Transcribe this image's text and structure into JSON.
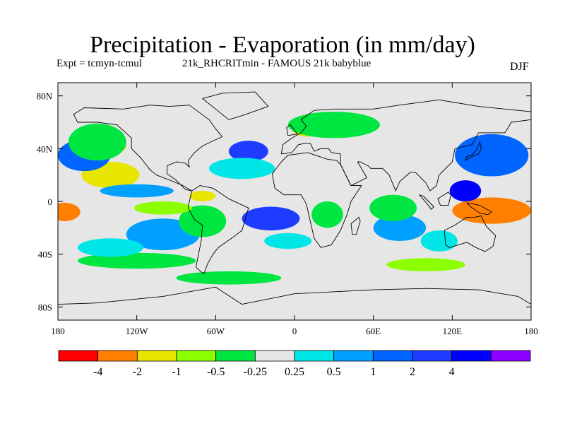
{
  "title": "Precipitation - Evaporation (in mm/day)",
  "subtitle_left": "Expt = tcmyn-tcmul",
  "subtitle_center": "21k_RHCRITmin - FAMOUS 21k babyblue",
  "season": "DJF",
  "map": {
    "projection": "cylindrical equidistant",
    "lon_range": [
      -180,
      180
    ],
    "lat_range": [
      -90,
      90
    ],
    "y_ticks": [
      {
        "lat": 80,
        "label": "80N"
      },
      {
        "lat": 40,
        "label": "40N"
      },
      {
        "lat": 0,
        "label": "0"
      },
      {
        "lat": -40,
        "label": "40S"
      },
      {
        "lat": -80,
        "label": "80S"
      }
    ],
    "x_ticks": [
      {
        "lon": -180,
        "label": "180"
      },
      {
        "lon": -120,
        "label": "120W"
      },
      {
        "lon": -60,
        "label": "60W"
      },
      {
        "lon": 0,
        "label": "0"
      },
      {
        "lon": 60,
        "label": "60E"
      },
      {
        "lon": 120,
        "label": "120E"
      },
      {
        "lon": 180,
        "label": "180"
      }
    ],
    "neutral_color": "#e6e6e6",
    "anomaly_patches": [
      {
        "name": "wpac-center",
        "lon": 148,
        "lat": -8,
        "rlon": 16,
        "rlat": 7,
        "color": "#ff0000"
      },
      {
        "name": "wpac-orange",
        "lon": 150,
        "lat": -7,
        "rlon": 30,
        "rlat": 10,
        "color": "#ff8000"
      },
      {
        "name": "epac-orange",
        "lon": -175,
        "lat": -8,
        "rlon": 12,
        "rlat": 7,
        "color": "#ff8000"
      },
      {
        "name": "nepac-yellow",
        "lon": -140,
        "lat": 20,
        "rlon": 22,
        "rlat": 10,
        "color": "#e6e600"
      },
      {
        "name": "namer-yellow",
        "lon": -140,
        "lat": 42,
        "rlon": 12,
        "rlat": 6,
        "color": "#e6e600"
      },
      {
        "name": "eu-yellow",
        "lon": 10,
        "lat": 55,
        "rlon": 12,
        "rlat": 6,
        "color": "#e6e600"
      },
      {
        "name": "samer-yellow",
        "lon": -70,
        "lat": 4,
        "rlon": 10,
        "rlat": 4,
        "color": "#e6e600"
      },
      {
        "name": "npac-blue",
        "lon": 150,
        "lat": 35,
        "rlon": 28,
        "rlat": 16,
        "color": "#0064ff"
      },
      {
        "name": "wpac-navy",
        "lon": 130,
        "lat": 8,
        "rlon": 12,
        "rlat": 8,
        "color": "#0000ff"
      },
      {
        "name": "natl-navy",
        "lon": -35,
        "lat": 38,
        "rlon": 15,
        "rlat": 8,
        "color": "#1e3cff"
      },
      {
        "name": "satl-navy",
        "lon": -18,
        "lat": -13,
        "rlon": 22,
        "rlat": 9,
        "color": "#1e3cff"
      },
      {
        "name": "spac-blue",
        "lon": -100,
        "lat": -25,
        "rlon": 28,
        "rlat": 12,
        "color": "#00a0ff"
      },
      {
        "name": "npac-east-blue",
        "lon": -160,
        "lat": 35,
        "rlon": 20,
        "rlat": 12,
        "color": "#0064ff"
      },
      {
        "name": "trop-pac-blue",
        "lon": -120,
        "lat": 8,
        "rlon": 28,
        "rlat": 5,
        "color": "#00a0ff"
      },
      {
        "name": "io-blue",
        "lon": 80,
        "lat": -20,
        "rlon": 20,
        "rlat": 10,
        "color": "#00a0ff"
      },
      {
        "name": "sh-green-band",
        "lon": -120,
        "lat": -45,
        "rlon": 45,
        "rlat": 6,
        "color": "#00e640"
      },
      {
        "name": "npac-green",
        "lon": -150,
        "lat": 45,
        "rlon": 22,
        "rlat": 14,
        "color": "#00e640"
      },
      {
        "name": "eu-green",
        "lon": 30,
        "lat": 58,
        "rlon": 35,
        "rlat": 10,
        "color": "#00e640"
      },
      {
        "name": "io-green",
        "lon": 75,
        "lat": -5,
        "rlon": 18,
        "rlat": 10,
        "color": "#00e640"
      },
      {
        "name": "samer-green",
        "lon": -70,
        "lat": -15,
        "rlon": 18,
        "rlat": 12,
        "color": "#00e640"
      },
      {
        "name": "africa-green",
        "lon": 25,
        "lat": -10,
        "rlon": 12,
        "rlat": 10,
        "color": "#00e640"
      },
      {
        "name": "so-green",
        "lon": -50,
        "lat": -58,
        "rlon": 40,
        "rlat": 5,
        "color": "#00e640"
      },
      {
        "name": "spac-cyan",
        "lon": -140,
        "lat": -35,
        "rlon": 25,
        "rlat": 7,
        "color": "#00e6e6"
      },
      {
        "name": "natl-cyan",
        "lon": -40,
        "lat": 25,
        "rlon": 25,
        "rlat": 8,
        "color": "#00e6e6"
      },
      {
        "name": "satl-cyan",
        "lon": -5,
        "lat": -30,
        "rlon": 18,
        "rlat": 6,
        "color": "#00e6e6"
      },
      {
        "name": "io-cyan",
        "lon": 110,
        "lat": -30,
        "rlon": 14,
        "rlat": 8,
        "color": "#00e6e6"
      },
      {
        "name": "amer-lime",
        "lon": -100,
        "lat": -5,
        "rlon": 22,
        "rlat": 5,
        "color": "#8cff00"
      },
      {
        "name": "so-lime",
        "lon": 100,
        "lat": -48,
        "rlon": 30,
        "rlat": 5,
        "color": "#8cff00"
      }
    ],
    "land_masses": [
      {
        "name": "north-america",
        "points": [
          [
            -168,
            66
          ],
          [
            -160,
            71
          ],
          [
            -130,
            70
          ],
          [
            -110,
            73
          ],
          [
            -95,
            72
          ],
          [
            -80,
            73
          ],
          [
            -65,
            62
          ],
          [
            -60,
            55
          ],
          [
            -55,
            49
          ],
          [
            -66,
            44
          ],
          [
            -70,
            42
          ],
          [
            -76,
            37
          ],
          [
            -81,
            31
          ],
          [
            -80,
            26
          ],
          [
            -83,
            29
          ],
          [
            -90,
            30
          ],
          [
            -97,
            27
          ],
          [
            -97,
            21
          ],
          [
            -90,
            16
          ],
          [
            -83,
            9
          ],
          [
            -78,
            8
          ],
          [
            -85,
            12
          ],
          [
            -92,
            15
          ],
          [
            -105,
            20
          ],
          [
            -110,
            24
          ],
          [
            -117,
            33
          ],
          [
            -124,
            40
          ],
          [
            -124,
            48
          ],
          [
            -135,
            58
          ],
          [
            -150,
            60
          ],
          [
            -165,
            60
          ]
        ]
      },
      {
        "name": "south-america",
        "points": [
          [
            -78,
            8
          ],
          [
            -72,
            12
          ],
          [
            -62,
            10
          ],
          [
            -50,
            2
          ],
          [
            -35,
            -5
          ],
          [
            -37,
            -12
          ],
          [
            -40,
            -22
          ],
          [
            -48,
            -28
          ],
          [
            -58,
            -35
          ],
          [
            -62,
            -40
          ],
          [
            -66,
            -47
          ],
          [
            -69,
            -55
          ],
          [
            -75,
            -50
          ],
          [
            -73,
            -40
          ],
          [
            -71,
            -30
          ],
          [
            -70,
            -18
          ],
          [
            -76,
            -14
          ],
          [
            -81,
            -5
          ],
          [
            -80,
            0
          ]
        ]
      },
      {
        "name": "greenland",
        "points": [
          [
            -70,
            78
          ],
          [
            -55,
            82
          ],
          [
            -30,
            83
          ],
          [
            -20,
            72
          ],
          [
            -40,
            65
          ],
          [
            -50,
            62
          ],
          [
            -60,
            70
          ]
        ]
      },
      {
        "name": "africa",
        "points": [
          [
            -17,
            21
          ],
          [
            -10,
            30
          ],
          [
            -5,
            35
          ],
          [
            10,
            37
          ],
          [
            25,
            32
          ],
          [
            32,
            31
          ],
          [
            35,
            28
          ],
          [
            43,
            12
          ],
          [
            51,
            12
          ],
          [
            43,
            0
          ],
          [
            40,
            -10
          ],
          [
            35,
            -22
          ],
          [
            28,
            -33
          ],
          [
            20,
            -35
          ],
          [
            15,
            -28
          ],
          [
            12,
            -15
          ],
          [
            9,
            -2
          ],
          [
            5,
            5
          ],
          [
            -8,
            5
          ],
          [
            -15,
            10
          ]
        ]
      },
      {
        "name": "eurasia",
        "points": [
          [
            -10,
            36
          ],
          [
            -9,
            43
          ],
          [
            -2,
            48
          ],
          [
            5,
            52
          ],
          [
            9,
            57
          ],
          [
            5,
            62
          ],
          [
            15,
            69
          ],
          [
            30,
            70
          ],
          [
            60,
            70
          ],
          [
            80,
            73
          ],
          [
            110,
            77
          ],
          [
            140,
            72
          ],
          [
            160,
            70
          ],
          [
            180,
            68
          ],
          [
            180,
            62
          ],
          [
            165,
            60
          ],
          [
            160,
            52
          ],
          [
            140,
            52
          ],
          [
            135,
            43
          ],
          [
            122,
            40
          ],
          [
            120,
            30
          ],
          [
            110,
            20
          ],
          [
            108,
            12
          ],
          [
            103,
            8
          ],
          [
            100,
            14
          ],
          [
            97,
            17
          ],
          [
            92,
            22
          ],
          [
            88,
            22
          ],
          [
            80,
            15
          ],
          [
            77,
            8
          ],
          [
            72,
            20
          ],
          [
            67,
            25
          ],
          [
            58,
            25
          ],
          [
            56,
            27
          ],
          [
            50,
            30
          ],
          [
            48,
            30
          ],
          [
            55,
            18
          ],
          [
            45,
            13
          ],
          [
            43,
            12
          ],
          [
            35,
            28
          ],
          [
            35,
            36
          ],
          [
            28,
            37
          ],
          [
            26,
            40
          ],
          [
            20,
            40
          ],
          [
            15,
            38
          ],
          [
            12,
            44
          ],
          [
            8,
            44
          ],
          [
            3,
            43
          ],
          [
            -2,
            37
          ]
        ]
      },
      {
        "name": "australia",
        "points": [
          [
            114,
            -22
          ],
          [
            122,
            -18
          ],
          [
            131,
            -12
          ],
          [
            137,
            -12
          ],
          [
            142,
            -11
          ],
          [
            146,
            -19
          ],
          [
            153,
            -26
          ],
          [
            151,
            -34
          ],
          [
            145,
            -38
          ],
          [
            138,
            -35
          ],
          [
            131,
            -31
          ],
          [
            118,
            -35
          ],
          [
            115,
            -33
          ]
        ]
      },
      {
        "name": "antarctica",
        "points": [
          [
            -180,
            -78
          ],
          [
            -150,
            -77
          ],
          [
            -100,
            -72
          ],
          [
            -60,
            -65
          ],
          [
            -40,
            -78
          ],
          [
            0,
            -70
          ],
          [
            60,
            -67
          ],
          [
            100,
            -66
          ],
          [
            140,
            -67
          ],
          [
            170,
            -72
          ],
          [
            180,
            -78
          ],
          [
            180,
            -90
          ],
          [
            -180,
            -90
          ]
        ]
      },
      {
        "name": "borneo",
        "points": [
          [
            109,
            2
          ],
          [
            117,
            7
          ],
          [
            119,
            5
          ],
          [
            117,
            -3
          ],
          [
            111,
            -3
          ]
        ]
      },
      {
        "name": "sumatra",
        "points": [
          [
            95,
            5
          ],
          [
            98,
            4
          ],
          [
            106,
            -4
          ],
          [
            104,
            -6
          ],
          [
            101,
            -2
          ]
        ]
      },
      {
        "name": "new-guinea",
        "points": [
          [
            131,
            -1
          ],
          [
            141,
            -3
          ],
          [
            150,
            -8
          ],
          [
            147,
            -10
          ],
          [
            141,
            -9
          ],
          [
            134,
            -4
          ]
        ]
      },
      {
        "name": "japan",
        "points": [
          [
            130,
            31
          ],
          [
            135,
            34
          ],
          [
            140,
            36
          ],
          [
            142,
            40
          ],
          [
            141,
            45
          ],
          [
            139,
            40
          ],
          [
            135,
            35
          ],
          [
            131,
            34
          ]
        ]
      },
      {
        "name": "madagascar",
        "points": [
          [
            44,
            -25
          ],
          [
            47,
            -25
          ],
          [
            50,
            -15
          ],
          [
            49,
            -12
          ],
          [
            43,
            -17
          ]
        ]
      },
      {
        "name": "uk",
        "points": [
          [
            -5,
            50
          ],
          [
            2,
            51
          ],
          [
            0,
            54
          ],
          [
            -3,
            58
          ],
          [
            -6,
            56
          ]
        ]
      }
    ]
  },
  "colorbar": {
    "colors": [
      "#ff0000",
      "#ff8000",
      "#e6e600",
      "#8cff00",
      "#00e640",
      "#e6e6e6",
      "#00e6e6",
      "#00a0ff",
      "#0064ff",
      "#1e3cff",
      "#0000ff",
      "#8c00ff"
    ],
    "labels": [
      "-4",
      "-2",
      "-1",
      "-0.5",
      "-0.25",
      "0.25",
      "0.5",
      "1",
      "2",
      "4"
    ]
  }
}
